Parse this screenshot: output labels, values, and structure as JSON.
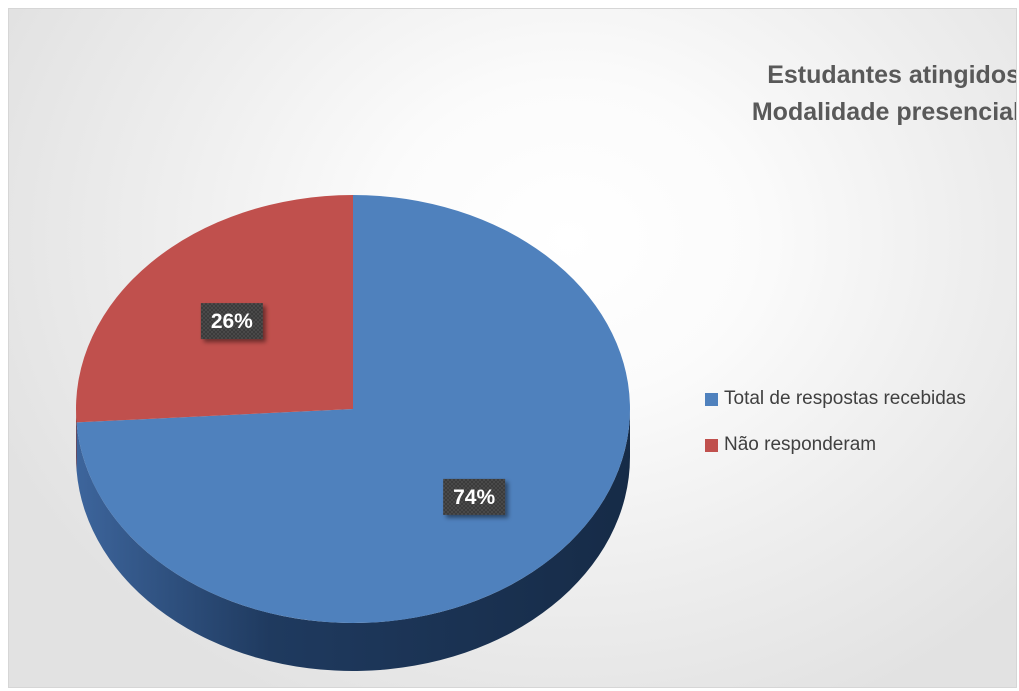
{
  "chart_data": {
    "type": "pie",
    "title_lines": [
      "Estudantes atingidos",
      "Modalidade presencial"
    ],
    "categories": [
      "Total de respostas recebidas",
      "Não responderam"
    ],
    "values": [
      74,
      26
    ],
    "data_labels": [
      "74%",
      "26%"
    ],
    "colors": [
      "#4f81bd",
      "#c0504d"
    ],
    "legend_position": "right",
    "style": "3d"
  }
}
